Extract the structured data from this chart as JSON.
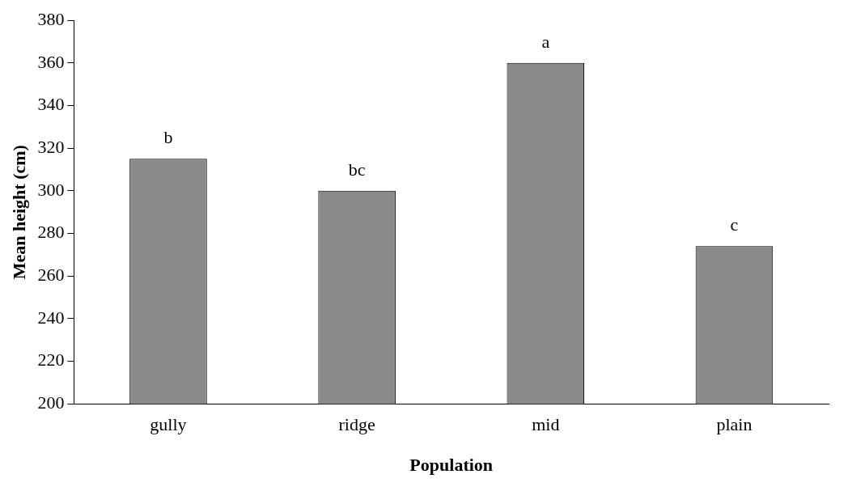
{
  "chart_data": {
    "type": "bar",
    "xlabel": "Population",
    "ylabel": "Mean height (cm)",
    "categories": [
      "gully",
      "ridge",
      "mid",
      "plain"
    ],
    "values": [
      315,
      300,
      360,
      274
    ],
    "color": "#8a8a8a",
    "ylim": [
      200,
      380
    ],
    "yticks": [
      200,
      220,
      240,
      260,
      280,
      300,
      320,
      340,
      360,
      380
    ],
    "grid": false,
    "legend": false,
    "annotations": [
      {
        "text": "b",
        "x": "gully",
        "y": 315
      },
      {
        "text": "bc",
        "x": "ridge",
        "y": 300
      },
      {
        "text": "a",
        "x": "mid",
        "y": 360
      },
      {
        "text": "c",
        "x": "plain",
        "y": 274
      }
    ]
  }
}
